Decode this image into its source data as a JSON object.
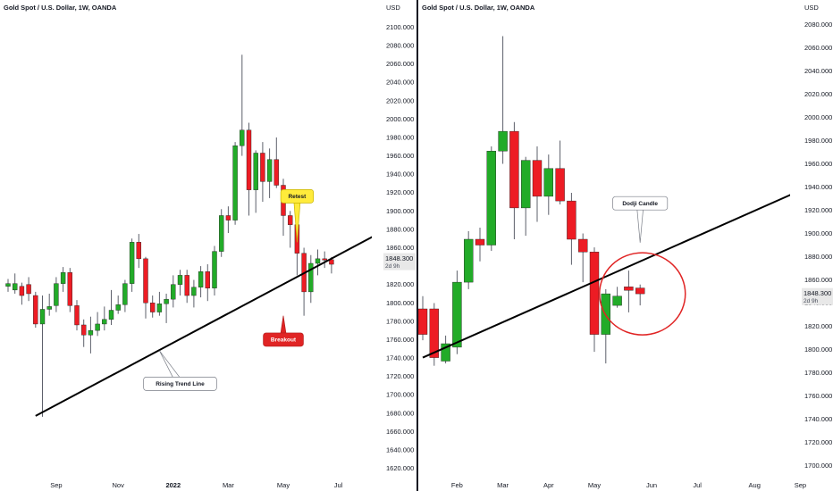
{
  "chart_data": [
    {
      "type": "candlestick",
      "title": "Gold Spot / U.S. Dollar, 1W, OANDA",
      "unit": "USD",
      "ylim": [
        1605,
        2115
      ],
      "yticks": [
        "1620.000",
        "1640.000",
        "1660.000",
        "1680.000",
        "1700.000",
        "1720.000",
        "1740.000",
        "1760.000",
        "1780.000",
        "1800.000",
        "1820.000",
        "1840.000",
        "1860.000",
        "1880.000",
        "1900.000",
        "1920.000",
        "1940.000",
        "1960.000",
        "1980.000",
        "2000.000",
        "2020.000",
        "2040.000",
        "2060.000",
        "2080.000",
        "2100.000"
      ],
      "xticks": [
        {
          "label": "Sep",
          "index": 7,
          "bold": false
        },
        {
          "label": "Nov",
          "index": 16,
          "bold": false
        },
        {
          "label": "2022",
          "index": 24,
          "bold": true
        },
        {
          "label": "Mar",
          "index": 32,
          "bold": false
        },
        {
          "label": "May",
          "index": 40,
          "bold": false
        },
        {
          "label": "Jul",
          "index": 48,
          "bold": false
        }
      ],
      "last_price": "1848.300",
      "countdown": "2d 9h",
      "candles": [
        [
          1818,
          1821,
          1826,
          1812
        ],
        [
          1814,
          1821,
          1832,
          1810
        ],
        [
          1818,
          1808,
          1822,
          1798
        ],
        [
          1820,
          1810,
          1828,
          1802
        ],
        [
          1808,
          1777,
          1812,
          1773
        ],
        [
          1777,
          1793,
          1808,
          1676
        ],
        [
          1793,
          1796,
          1810,
          1786
        ],
        [
          1797,
          1821,
          1828,
          1790
        ],
        [
          1821,
          1833,
          1839,
          1812
        ],
        [
          1833,
          1797,
          1838,
          1790
        ],
        [
          1797,
          1776,
          1803,
          1770
        ],
        [
          1776,
          1765,
          1782,
          1752
        ],
        [
          1765,
          1770,
          1785,
          1745
        ],
        [
          1770,
          1777,
          1790,
          1764
        ],
        [
          1777,
          1782,
          1796,
          1770
        ],
        [
          1782,
          1792,
          1814,
          1776
        ],
        [
          1792,
          1798,
          1808,
          1788
        ],
        [
          1798,
          1821,
          1825,
          1790
        ],
        [
          1821,
          1866,
          1870,
          1812
        ],
        [
          1866,
          1848,
          1875,
          1838
        ],
        [
          1848,
          1800,
          1850,
          1783
        ],
        [
          1800,
          1790,
          1808,
          1784
        ],
        [
          1790,
          1799,
          1812,
          1786
        ],
        [
          1799,
          1804,
          1810,
          1778
        ],
        [
          1804,
          1820,
          1830,
          1795
        ],
        [
          1820,
          1830,
          1836,
          1808
        ],
        [
          1830,
          1808,
          1836,
          1800
        ],
        [
          1808,
          1817,
          1825,
          1795
        ],
        [
          1817,
          1834,
          1840,
          1806
        ],
        [
          1834,
          1816,
          1842,
          1802
        ],
        [
          1816,
          1856,
          1862,
          1808
        ],
        [
          1856,
          1895,
          1902,
          1850
        ],
        [
          1895,
          1890,
          1905,
          1876
        ],
        [
          1890,
          1971,
          1975,
          1885
        ],
        [
          1971,
          1988,
          2070,
          1960
        ],
        [
          1988,
          1923,
          1996,
          1895
        ],
        [
          1923,
          1963,
          1966,
          1898
        ],
        [
          1963,
          1932,
          1975,
          1910
        ],
        [
          1932,
          1956,
          1968,
          1914
        ],
        [
          1956,
          1928,
          1980,
          1925
        ],
        [
          1928,
          1895,
          1935,
          1873
        ],
        [
          1895,
          1885,
          1900,
          1860
        ],
        [
          1885,
          1854,
          1885,
          1830
        ],
        [
          1854,
          1812,
          1860,
          1786
        ],
        [
          1812,
          1843,
          1852,
          1800
        ],
        [
          1843,
          1848,
          1858,
          1830
        ],
        [
          1848,
          1847,
          1856,
          1838
        ],
        [
          1847,
          1842,
          1850,
          1832
        ]
      ],
      "trend_line": {
        "from": {
          "index": 4,
          "value": 1677
        },
        "to": {
          "index": 60,
          "value": 1900
        }
      },
      "annotations": [
        {
          "text": "Rising Trend Line",
          "index": 25,
          "value": 1712,
          "target_index": 22,
          "target_value": 1748,
          "fill": "#ffffff",
          "stroke": "#7a7e87",
          "text_color": "#131722"
        },
        {
          "text": "Retest",
          "index": 42,
          "value": 1916,
          "target_index": 42,
          "target_value": 1866,
          "fill": "#ffeb3b",
          "stroke": "#c9b400",
          "text_color": "#131722"
        },
        {
          "text": "Breakout",
          "index": 40,
          "value": 1760,
          "target_index": 40,
          "target_value": 1786,
          "fill": "#e02424",
          "stroke": "#b31d1d",
          "text_color": "#ffffff"
        }
      ]
    },
    {
      "type": "candlestick",
      "title": "Gold Spot / U.S. Dollar, 1W, OANDA",
      "unit": "USD",
      "ylim": [
        1695,
        2095
      ],
      "yticks": [
        "1700.000",
        "1720.000",
        "1740.000",
        "1760.000",
        "1780.000",
        "1800.000",
        "1820.000",
        "1840.000",
        "1860.000",
        "1880.000",
        "1900.000",
        "1920.000",
        "1940.000",
        "1960.000",
        "1980.000",
        "2000.000",
        "2020.000",
        "2040.000",
        "2060.000",
        "2080.000"
      ],
      "xticks": [
        {
          "label": "Feb",
          "index": 3,
          "bold": false
        },
        {
          "label": "Mar",
          "index": 7,
          "bold": false
        },
        {
          "label": "Apr",
          "index": 11,
          "bold": false
        },
        {
          "label": "May",
          "index": 15,
          "bold": false
        },
        {
          "label": "Jun",
          "index": 20,
          "bold": false
        },
        {
          "label": "Jul",
          "index": 24,
          "bold": false
        },
        {
          "label": "Aug",
          "index": 29,
          "bold": false
        },
        {
          "label": "Sep",
          "index": 33,
          "bold": false
        }
      ],
      "last_price": "1848.300",
      "countdown": "2d 9h",
      "candles": [
        [
          1835,
          1813,
          1846,
          1808
        ],
        [
          1835,
          1793,
          1840,
          1786
        ],
        [
          1790,
          1805,
          1812,
          1788
        ],
        [
          1802,
          1858,
          1868,
          1796
        ],
        [
          1858,
          1895,
          1902,
          1852
        ],
        [
          1895,
          1890,
          1905,
          1876
        ],
        [
          1890,
          1971,
          1975,
          1885
        ],
        [
          1971,
          1988,
          2070,
          1960
        ],
        [
          1988,
          1922,
          1996,
          1895
        ],
        [
          1922,
          1963,
          1966,
          1898
        ],
        [
          1963,
          1932,
          1975,
          1910
        ],
        [
          1932,
          1956,
          1968,
          1916
        ],
        [
          1956,
          1928,
          1980,
          1925
        ],
        [
          1928,
          1895,
          1935,
          1873
        ],
        [
          1895,
          1884,
          1900,
          1858
        ],
        [
          1884,
          1813,
          1888,
          1798
        ],
        [
          1813,
          1848,
          1852,
          1788
        ],
        [
          1838,
          1846,
          1854,
          1836
        ],
        [
          1854,
          1851,
          1868,
          1832
        ],
        [
          1853,
          1848,
          1856,
          1838
        ]
      ],
      "trend_line": {
        "from": {
          "index": 0,
          "value": 1793
        },
        "to": {
          "index": 33,
          "value": 1937
        }
      },
      "annotations": [
        {
          "text": "Dodji Candle",
          "index": 19,
          "value": 1926,
          "target_index": 19,
          "target_value": 1892,
          "fill": "#ffffff",
          "stroke": "#7a7e87",
          "text_color": "#131722",
          "circle": {
            "index": 19.2,
            "value": 1848,
            "rx": 48,
            "ry": 46
          }
        }
      ]
    }
  ],
  "colors": {
    "up": "#22ab28",
    "down": "#ed1c24",
    "wick": "#5d606b",
    "line": "#000000",
    "label_bg": "#e8e8e8"
  }
}
